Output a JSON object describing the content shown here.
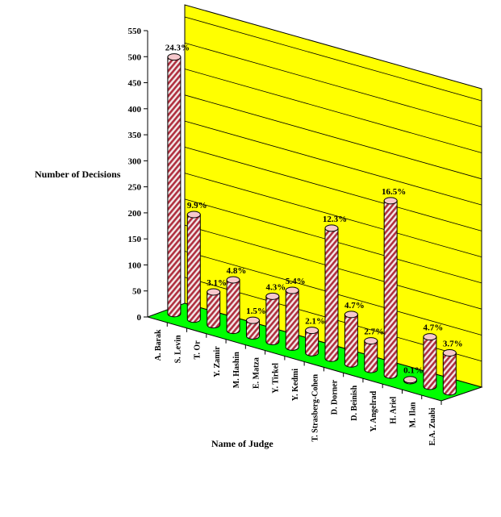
{
  "chart_data": {
    "type": "bar",
    "style": "3d-cylinder",
    "xlabel": "Name of Judge",
    "ylabel": "Number of Decisions",
    "ylim": [
      0,
      550
    ],
    "yticks": [
      0,
      50,
      100,
      150,
      200,
      250,
      300,
      350,
      400,
      450,
      500,
      550
    ],
    "grid": true,
    "categories": [
      "A. Barak",
      "S. Levin",
      "T. Or",
      "Y. Zamir",
      "M. Hashin",
      "E. Matza",
      "Y. Tirkel",
      "Y. Kedmi",
      "T. Strasberg-Cohen",
      "D. Dorner",
      "D. Beinish",
      "Y. Angelrad",
      "H. Ariel",
      "M. Ilan",
      "E.A. Zuabi"
    ],
    "values": [
      493,
      201,
      63,
      97,
      30,
      87,
      109,
      43,
      250,
      95,
      55,
      335,
      2,
      95,
      75
    ],
    "data_labels": [
      "24.3%",
      "9.9%",
      "3.1%",
      "4.8%",
      "1.5%",
      "4.3%",
      "5.4%",
      "2.1%",
      "12.3%",
      "4.7%",
      "2.7%",
      "16.5%",
      "0.1%",
      "4.7%",
      "3.7%"
    ],
    "colors": {
      "wall": "#ffff00",
      "floor": "#00ff00",
      "bar_stripe_a": "#b03040",
      "bar_stripe_b": "#f2e8e8",
      "bar_top": "#f6c8cc"
    }
  }
}
